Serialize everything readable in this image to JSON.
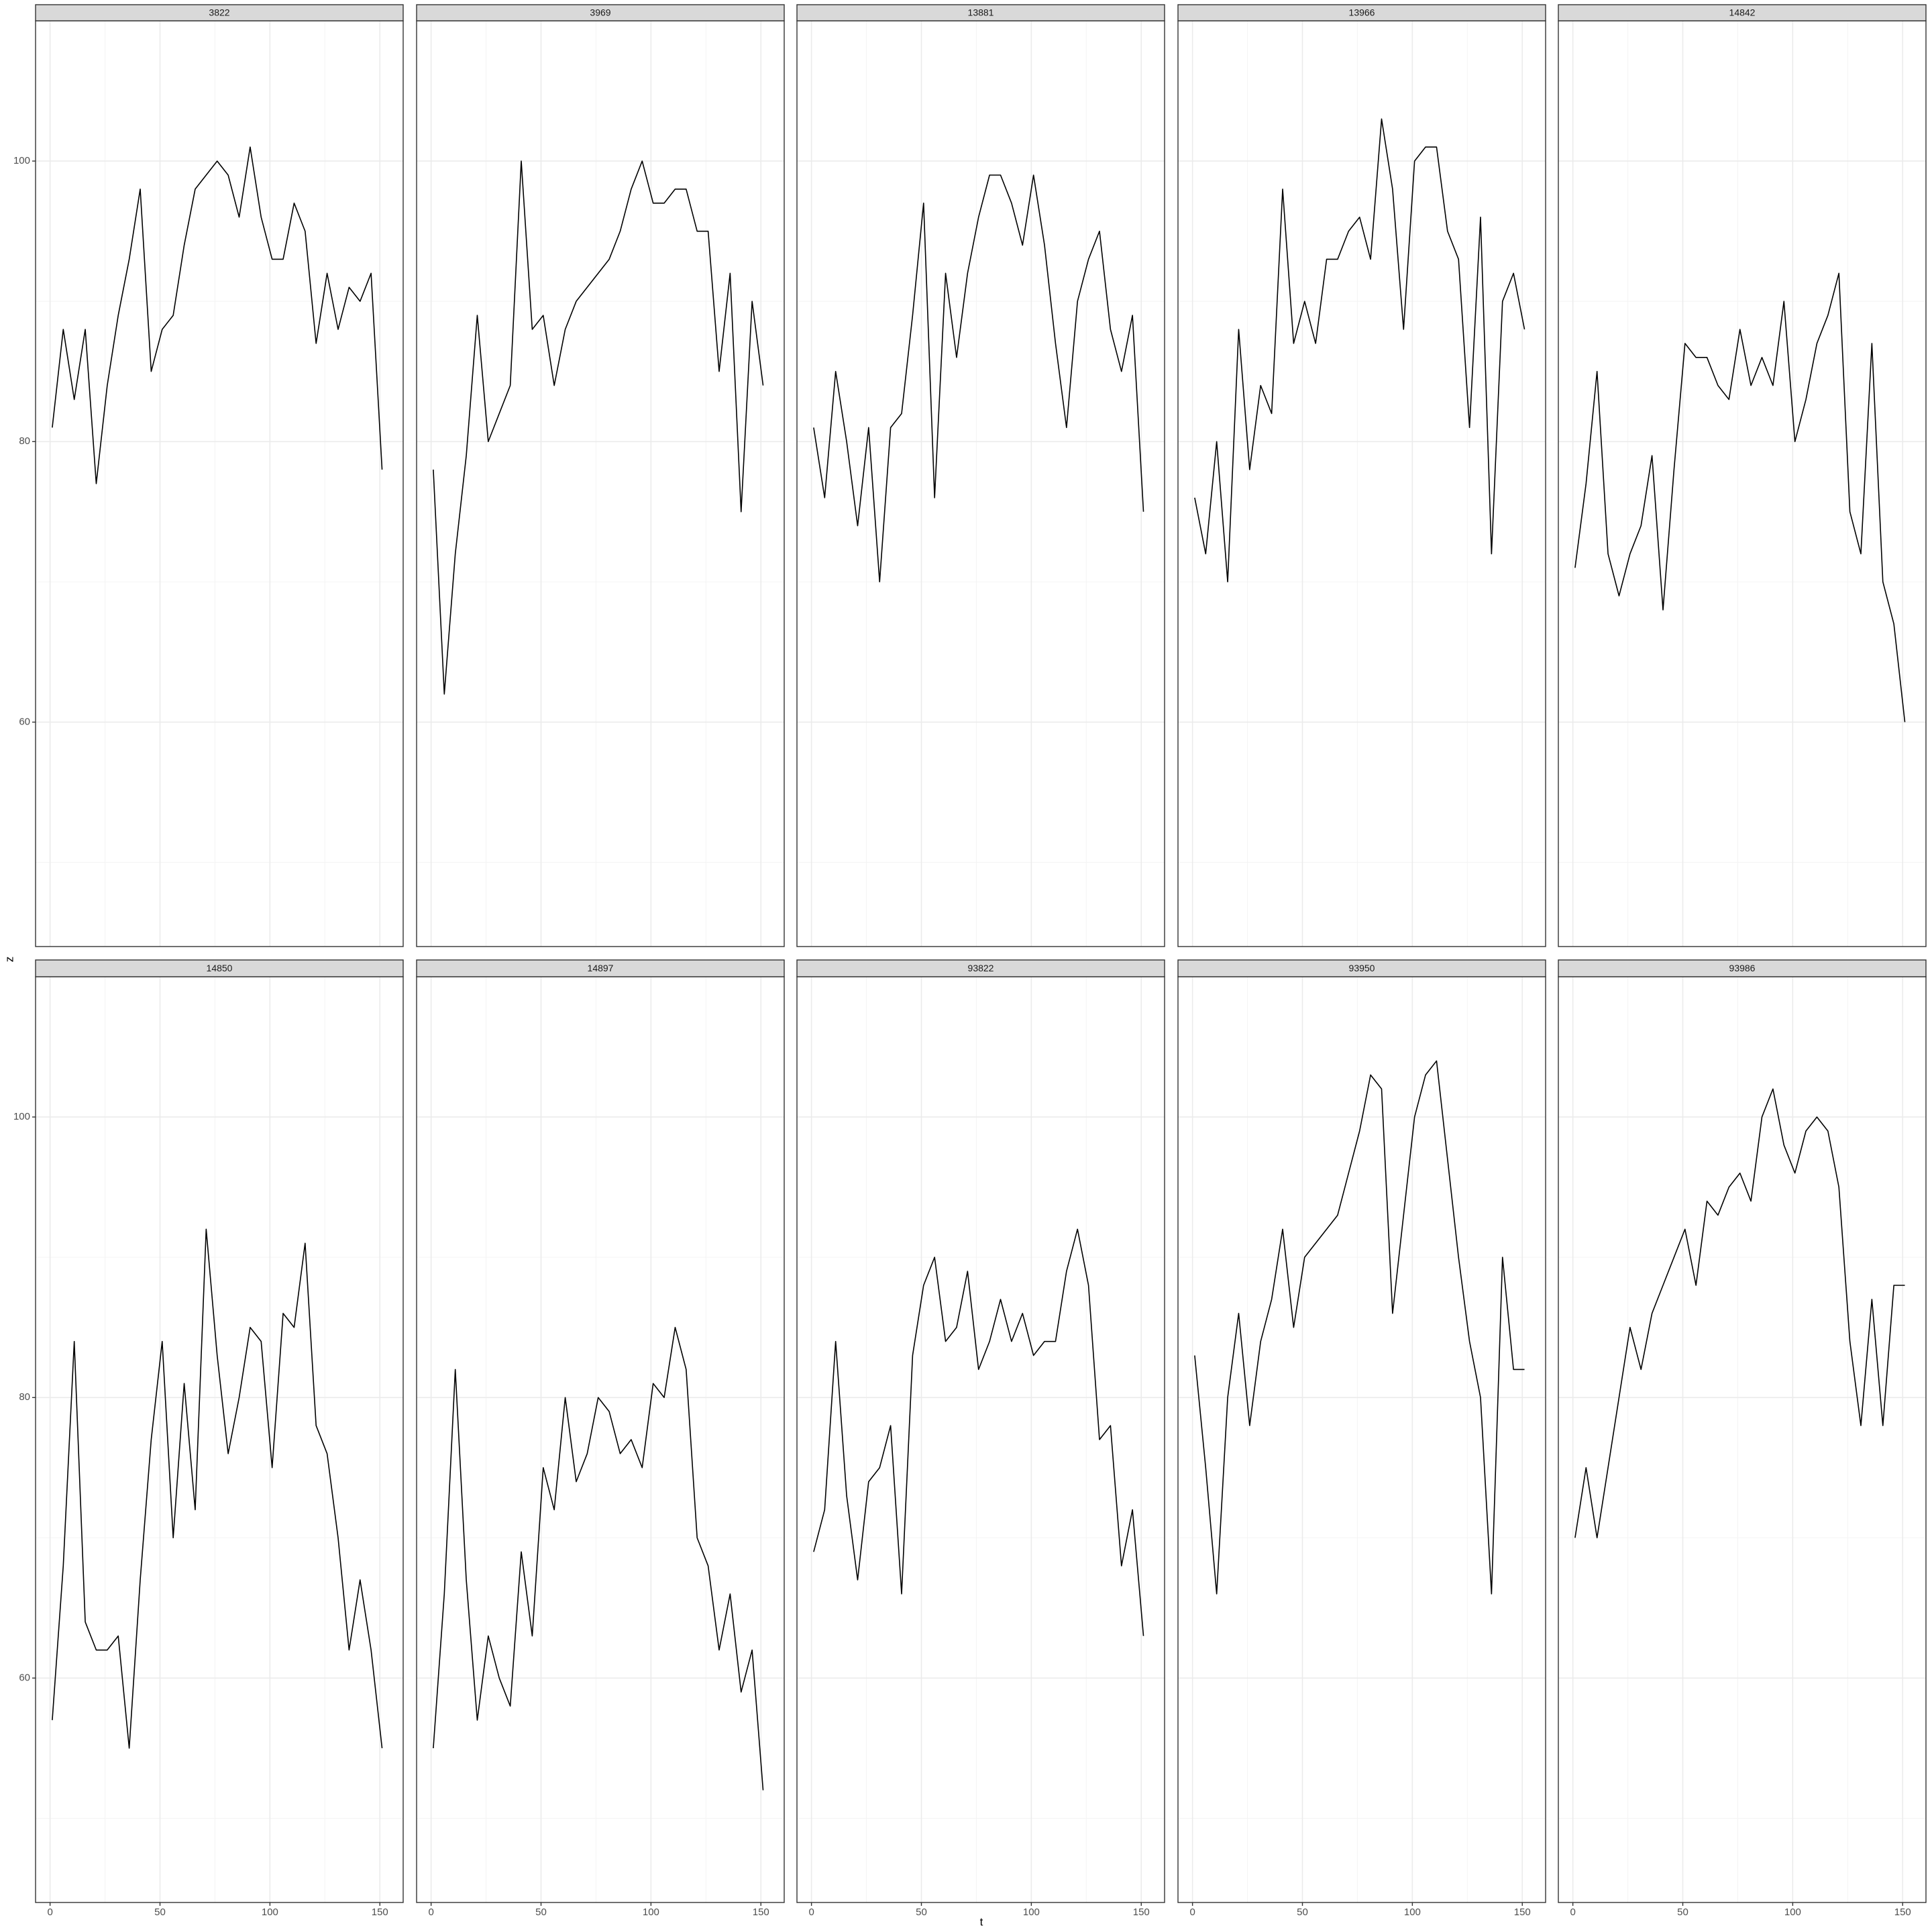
{
  "axis_titles": {
    "x": "t",
    "y": "z"
  },
  "chart_data": [
    {
      "type": "line",
      "title": "3822",
      "color": "#000000",
      "grid": true,
      "xlim": [
        -6.6,
        160.6
      ],
      "ylim": [
        44,
        110
      ],
      "xticks": [
        0,
        50,
        100,
        150
      ],
      "yticks": [
        60,
        80,
        100
      ],
      "minor_xticks": [
        25,
        75,
        125
      ],
      "minor_yticks": [
        50,
        70,
        90,
        110
      ],
      "x": [
        1,
        6,
        11,
        16,
        21,
        26,
        31,
        36,
        41,
        46,
        51,
        56,
        61,
        66,
        71,
        76,
        81,
        86,
        91,
        96,
        101,
        106,
        111,
        116,
        121,
        126,
        131,
        136,
        141,
        146,
        151
      ],
      "values": [
        81,
        88,
        83,
        88,
        77,
        84,
        89,
        93,
        98,
        85,
        88,
        89,
        94,
        98,
        99,
        100,
        99,
        96,
        101,
        96,
        93,
        93,
        97,
        95,
        87,
        92,
        88,
        91,
        90,
        92,
        78
      ]
    },
    {
      "type": "line",
      "title": "3969",
      "color": "#000000",
      "grid": true,
      "xlim": [
        -6.6,
        160.6
      ],
      "ylim": [
        44,
        110
      ],
      "xticks": [
        0,
        50,
        100,
        150
      ],
      "yticks": [
        60,
        80,
        100
      ],
      "minor_xticks": [
        25,
        75,
        125
      ],
      "minor_yticks": [
        50,
        70,
        90,
        110
      ],
      "x": [
        1,
        6,
        11,
        16,
        21,
        26,
        31,
        36,
        41,
        46,
        51,
        56,
        61,
        66,
        71,
        76,
        81,
        86,
        91,
        96,
        101,
        106,
        111,
        116,
        121,
        126,
        131,
        136,
        141,
        146,
        151
      ],
      "values": [
        78,
        62,
        72,
        79,
        89,
        80,
        82,
        84,
        100,
        88,
        89,
        84,
        88,
        90,
        91,
        92,
        93,
        95,
        98,
        100,
        97,
        97,
        98,
        98,
        95,
        95,
        85,
        92,
        75,
        90,
        84
      ]
    },
    {
      "type": "line",
      "title": "13881",
      "color": "#000000",
      "grid": true,
      "xlim": [
        -6.6,
        160.6
      ],
      "ylim": [
        44,
        110
      ],
      "xticks": [
        0,
        50,
        100,
        150
      ],
      "yticks": [
        60,
        80,
        100
      ],
      "minor_xticks": [
        25,
        75,
        125
      ],
      "minor_yticks": [
        50,
        70,
        90,
        110
      ],
      "x": [
        1,
        6,
        11,
        16,
        21,
        26,
        31,
        36,
        41,
        46,
        51,
        56,
        61,
        66,
        71,
        76,
        81,
        86,
        91,
        96,
        101,
        106,
        111,
        116,
        121,
        126,
        131,
        136,
        141,
        146,
        151
      ],
      "values": [
        81,
        76,
        85,
        80,
        74,
        81,
        70,
        81,
        82,
        89,
        97,
        76,
        92,
        86,
        92,
        96,
        99,
        99,
        97,
        94,
        99,
        94,
        87,
        81,
        90,
        93,
        95,
        88,
        85,
        89,
        75
      ]
    },
    {
      "type": "line",
      "title": "13966",
      "color": "#000000",
      "grid": true,
      "xlim": [
        -6.6,
        160.6
      ],
      "ylim": [
        44,
        110
      ],
      "xticks": [
        0,
        50,
        100,
        150
      ],
      "yticks": [
        60,
        80,
        100
      ],
      "minor_xticks": [
        25,
        75,
        125
      ],
      "minor_yticks": [
        50,
        70,
        90,
        110
      ],
      "x": [
        1,
        6,
        11,
        16,
        21,
        26,
        31,
        36,
        41,
        46,
        51,
        56,
        61,
        66,
        71,
        76,
        81,
        86,
        91,
        96,
        101,
        106,
        111,
        116,
        121,
        126,
        131,
        136,
        141,
        146,
        151
      ],
      "values": [
        76,
        72,
        80,
        70,
        88,
        78,
        84,
        82,
        98,
        87,
        90,
        87,
        93,
        93,
        95,
        96,
        93,
        103,
        98,
        88,
        100,
        101,
        101,
        95,
        93,
        81,
        96,
        72,
        90,
        92,
        88
      ]
    },
    {
      "type": "line",
      "title": "14842",
      "color": "#000000",
      "grid": true,
      "xlim": [
        -6.6,
        160.6
      ],
      "ylim": [
        44,
        110
      ],
      "xticks": [
        0,
        50,
        100,
        150
      ],
      "yticks": [
        60,
        80,
        100
      ],
      "minor_xticks": [
        25,
        75,
        125
      ],
      "minor_yticks": [
        50,
        70,
        90,
        110
      ],
      "x": [
        1,
        6,
        11,
        16,
        21,
        26,
        31,
        36,
        41,
        46,
        51,
        56,
        61,
        66,
        71,
        76,
        81,
        86,
        91,
        96,
        101,
        106,
        111,
        116,
        121,
        126,
        131,
        136,
        141,
        146,
        151
      ],
      "values": [
        71,
        77,
        85,
        72,
        69,
        72,
        74,
        79,
        68,
        78,
        87,
        86,
        86,
        84,
        83,
        88,
        84,
        86,
        84,
        90,
        80,
        83,
        87,
        89,
        92,
        75,
        72,
        87,
        70,
        67,
        60
      ]
    },
    {
      "type": "line",
      "title": "14850",
      "color": "#000000",
      "grid": true,
      "xlim": [
        -6.6,
        160.6
      ],
      "ylim": [
        44,
        110
      ],
      "xticks": [
        0,
        50,
        100,
        150
      ],
      "yticks": [
        60,
        80,
        100
      ],
      "minor_xticks": [
        25,
        75,
        125
      ],
      "minor_yticks": [
        50,
        70,
        90,
        110
      ],
      "x": [
        1,
        6,
        11,
        16,
        21,
        26,
        31,
        36,
        41,
        46,
        51,
        56,
        61,
        66,
        71,
        76,
        81,
        86,
        91,
        96,
        101,
        106,
        111,
        116,
        121,
        126,
        131,
        136,
        141,
        146,
        151
      ],
      "values": [
        57,
        68,
        84,
        64,
        62,
        62,
        63,
        55,
        67,
        77,
        84,
        70,
        81,
        72,
        92,
        83,
        76,
        80,
        85,
        84,
        75,
        86,
        85,
        91,
        78,
        76,
        70,
        62,
        67,
        62,
        55
      ]
    },
    {
      "type": "line",
      "title": "14897",
      "color": "#000000",
      "grid": true,
      "xlim": [
        -6.6,
        160.6
      ],
      "ylim": [
        44,
        110
      ],
      "xticks": [
        0,
        50,
        100,
        150
      ],
      "yticks": [
        60,
        80,
        100
      ],
      "minor_xticks": [
        25,
        75,
        125
      ],
      "minor_yticks": [
        50,
        70,
        90,
        110
      ],
      "x": [
        1,
        6,
        11,
        16,
        21,
        26,
        31,
        36,
        41,
        46,
        51,
        56,
        61,
        66,
        71,
        76,
        81,
        86,
        91,
        96,
        101,
        106,
        111,
        116,
        121,
        126,
        131,
        136,
        141,
        146,
        151
      ],
      "values": [
        55,
        66,
        82,
        67,
        57,
        63,
        60,
        58,
        69,
        63,
        75,
        72,
        80,
        74,
        76,
        80,
        79,
        76,
        77,
        75,
        81,
        80,
        85,
        82,
        70,
        68,
        62,
        66,
        59,
        62,
        52
      ]
    },
    {
      "type": "line",
      "title": "93822",
      "color": "#000000",
      "grid": true,
      "xlim": [
        -6.6,
        160.6
      ],
      "ylim": [
        44,
        110
      ],
      "xticks": [
        0,
        50,
        100,
        150
      ],
      "yticks": [
        60,
        80,
        100
      ],
      "minor_xticks": [
        25,
        75,
        125
      ],
      "minor_yticks": [
        50,
        70,
        90,
        110
      ],
      "x": [
        1,
        6,
        11,
        16,
        21,
        26,
        31,
        36,
        41,
        46,
        51,
        56,
        61,
        66,
        71,
        76,
        81,
        86,
        91,
        96,
        101,
        106,
        111,
        116,
        121,
        126,
        131,
        136,
        141,
        146,
        151
      ],
      "values": [
        69,
        72,
        84,
        73,
        67,
        74,
        75,
        78,
        66,
        83,
        88,
        90,
        84,
        85,
        89,
        82,
        84,
        87,
        84,
        86,
        83,
        84,
        84,
        89,
        92,
        88,
        77,
        78,
        68,
        72,
        63
      ]
    },
    {
      "type": "line",
      "title": "93950",
      "color": "#000000",
      "grid": true,
      "xlim": [
        -6.6,
        160.6
      ],
      "ylim": [
        44,
        110
      ],
      "xticks": [
        0,
        50,
        100,
        150
      ],
      "yticks": [
        60,
        80,
        100
      ],
      "minor_xticks": [
        25,
        75,
        125
      ],
      "minor_yticks": [
        50,
        70,
        90,
        110
      ],
      "x": [
        1,
        6,
        11,
        16,
        21,
        26,
        31,
        36,
        41,
        46,
        51,
        56,
        61,
        66,
        71,
        76,
        81,
        86,
        91,
        96,
        101,
        106,
        111,
        116,
        121,
        126,
        131,
        136,
        141,
        146,
        151
      ],
      "values": [
        83,
        75,
        66,
        80,
        86,
        78,
        84,
        87,
        92,
        85,
        90,
        91,
        92,
        93,
        96,
        99,
        103,
        102,
        86,
        93,
        100,
        103,
        104,
        97,
        90,
        84,
        80,
        66,
        90,
        82,
        82
      ]
    },
    {
      "type": "line",
      "title": "93986",
      "color": "#000000",
      "grid": true,
      "xlim": [
        -6.6,
        160.6
      ],
      "ylim": [
        44,
        110
      ],
      "xticks": [
        0,
        50,
        100,
        150
      ],
      "yticks": [
        60,
        80,
        100
      ],
      "minor_xticks": [
        25,
        75,
        125
      ],
      "minor_yticks": [
        50,
        70,
        90,
        110
      ],
      "x": [
        1,
        6,
        11,
        16,
        21,
        26,
        31,
        36,
        41,
        46,
        51,
        56,
        61,
        66,
        71,
        76,
        81,
        86,
        91,
        96,
        101,
        106,
        111,
        116,
        121,
        126,
        131,
        136,
        141,
        146,
        151
      ],
      "values": [
        70,
        75,
        70,
        75,
        80,
        85,
        82,
        86,
        88,
        90,
        92,
        88,
        94,
        93,
        95,
        96,
        94,
        100,
        102,
        98,
        96,
        99,
        100,
        99,
        95,
        84,
        78,
        87,
        78,
        88,
        88
      ]
    }
  ]
}
